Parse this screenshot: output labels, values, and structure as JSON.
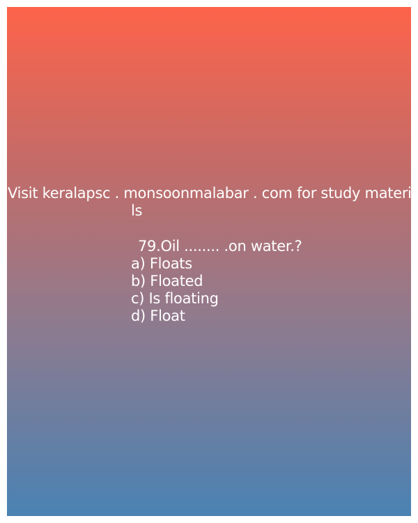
{
  "header_text": {
    "line1": "Visit keralapsc . monsoonmalabar . com for study materia",
    "line2": "ls"
  },
  "question": "79.Oil ........ .on water.?",
  "options": [
    "a) Floats",
    "b) Floated",
    "c) Is floating",
    "d) Float"
  ],
  "colors": {
    "gradient_top": "#fe634a",
    "gradient_bottom": "#4a82b3",
    "text": "#ffffff"
  }
}
